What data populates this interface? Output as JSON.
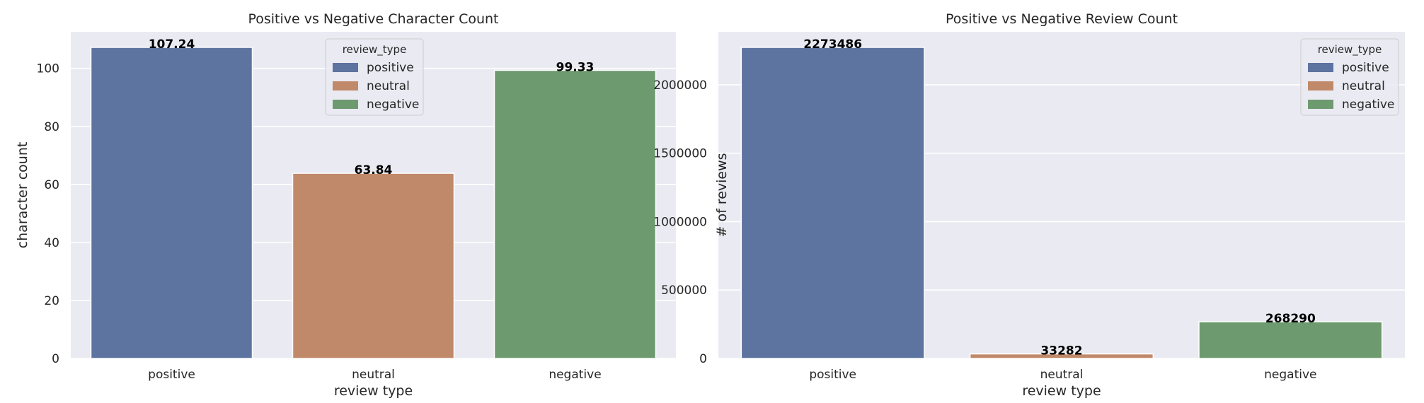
{
  "chart_data": [
    {
      "type": "bar",
      "title": "Positive vs Negative Character Count",
      "xlabel": "review type",
      "ylabel": "character count",
      "categories": [
        "positive",
        "neutral",
        "negative"
      ],
      "values": [
        107.24,
        63.84,
        99.33
      ],
      "data_labels": [
        "107.24",
        "63.84",
        "99.33"
      ],
      "yticks": [
        0,
        20,
        40,
        60,
        80,
        100
      ],
      "ylim": [
        0,
        112.6
      ],
      "grid": true,
      "legend": {
        "title": "review_type",
        "entries": [
          "positive",
          "neutral",
          "negative"
        ],
        "placement": "upper-center"
      },
      "colors": [
        "#5d74a0",
        "#c0896a",
        "#6e9a70"
      ]
    },
    {
      "type": "bar",
      "title": "Positive vs Negative Review Count",
      "xlabel": "review type",
      "ylabel": "# of reviews",
      "categories": [
        "positive",
        "neutral",
        "negative"
      ],
      "values": [
        2273486,
        33282,
        268290
      ],
      "data_labels": [
        "2273486",
        "33282",
        "268290"
      ],
      "yticks": [
        0,
        500000,
        1000000,
        1500000,
        2000000
      ],
      "ylim": [
        0,
        2387160
      ],
      "grid": true,
      "legend": {
        "title": "review_type",
        "entries": [
          "positive",
          "neutral",
          "negative"
        ],
        "placement": "upper-right"
      },
      "colors": [
        "#5d74a0",
        "#c0896a",
        "#6e9a70"
      ]
    }
  ]
}
